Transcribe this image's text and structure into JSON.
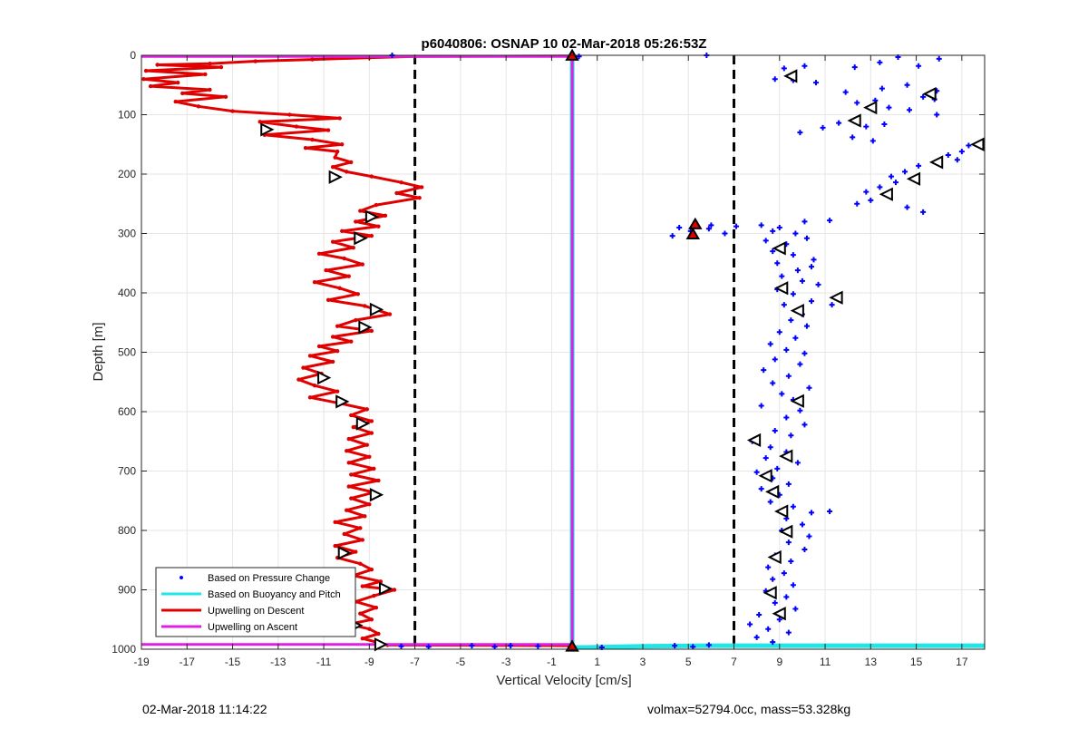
{
  "chart_data": {
    "type": "scatter",
    "title": "p6040806: OSNAP 10 02-Mar-2018 05:26:53Z",
    "xlabel": "Vertical Velocity [cm/s]",
    "ylabel": "Depth [m]",
    "xlim": [
      -19,
      18
    ],
    "ylim": [
      0,
      1000
    ],
    "y_reversed": true,
    "xticks": [
      -19,
      -17,
      -15,
      -13,
      -11,
      -9,
      -7,
      -5,
      -3,
      -1,
      1,
      3,
      5,
      7,
      9,
      11,
      13,
      15,
      17
    ],
    "yticks": [
      0,
      100,
      200,
      300,
      400,
      500,
      600,
      700,
      800,
      900,
      1000
    ],
    "grid": true,
    "legend_position": "bottom-left",
    "colors": {
      "pressure": "#0000ff",
      "buoyancy": "#22e5e5",
      "descent": "#e00000",
      "ascent": "#e020e0",
      "threshold": "#000000"
    },
    "series": [
      {
        "name": "Based on Pressure Change",
        "style": "points",
        "color": "#0000ff",
        "points": [
          [
            -8,
            0
          ],
          [
            5.8,
            0
          ],
          [
            0.2,
            2
          ],
          [
            9.2,
            22
          ],
          [
            10.1,
            18
          ],
          [
            12.3,
            20
          ],
          [
            13.4,
            12
          ],
          [
            14.2,
            3
          ],
          [
            15.1,
            18
          ],
          [
            16.0,
            6
          ],
          [
            8.8,
            40
          ],
          [
            9.6,
            42
          ],
          [
            10.6,
            46
          ],
          [
            13.5,
            56
          ],
          [
            14.6,
            50
          ],
          [
            15.9,
            60
          ],
          [
            11.9,
            62
          ],
          [
            12.4,
            80
          ],
          [
            13.2,
            76
          ],
          [
            15.3,
            70
          ],
          [
            15.8,
            74
          ],
          [
            14.7,
            92
          ],
          [
            13.8,
            88
          ],
          [
            15.9,
            100
          ],
          [
            11.6,
            114
          ],
          [
            12.8,
            120
          ],
          [
            13.6,
            116
          ],
          [
            10.9,
            122
          ],
          [
            12.2,
            138
          ],
          [
            13.1,
            144
          ],
          [
            9.9,
            130
          ],
          [
            17.3,
            152
          ],
          [
            17.0,
            162
          ],
          [
            16.4,
            168
          ],
          [
            16.8,
            176
          ],
          [
            15.1,
            186
          ],
          [
            14.5,
            196
          ],
          [
            13.9,
            204
          ],
          [
            14.1,
            214
          ],
          [
            13.4,
            222
          ],
          [
            12.8,
            230
          ],
          [
            13.0,
            244
          ],
          [
            12.4,
            250
          ],
          [
            14.6,
            256
          ],
          [
            15.3,
            264
          ],
          [
            4.6,
            290
          ],
          [
            5.1,
            296
          ],
          [
            4.3,
            304
          ],
          [
            6.0,
            286
          ],
          [
            7.1,
            288
          ],
          [
            6.6,
            300
          ],
          [
            5.9,
            292
          ],
          [
            8.2,
            286
          ],
          [
            9.0,
            290
          ],
          [
            10.1,
            280
          ],
          [
            11.2,
            278
          ],
          [
            8.7,
            296
          ],
          [
            9.7,
            300
          ],
          [
            8.4,
            312
          ],
          [
            9.3,
            318
          ],
          [
            10.2,
            308
          ],
          [
            8.7,
            330
          ],
          [
            9.6,
            336
          ],
          [
            10.5,
            344
          ],
          [
            8.9,
            350
          ],
          [
            9.8,
            362
          ],
          [
            10.4,
            356
          ],
          [
            9.1,
            372
          ],
          [
            10.0,
            380
          ],
          [
            10.7,
            386
          ],
          [
            8.9,
            394
          ],
          [
            9.6,
            402
          ],
          [
            10.4,
            414
          ],
          [
            11.3,
            420
          ],
          [
            9.2,
            420
          ],
          [
            10.0,
            436
          ],
          [
            9.5,
            446
          ],
          [
            10.2,
            456
          ],
          [
            9.0,
            466
          ],
          [
            9.7,
            476
          ],
          [
            8.6,
            486
          ],
          [
            9.3,
            496
          ],
          [
            10.1,
            502
          ],
          [
            8.8,
            512
          ],
          [
            9.9,
            520
          ],
          [
            8.3,
            530
          ],
          [
            9.4,
            540
          ],
          [
            8.7,
            552
          ],
          [
            10.3,
            560
          ],
          [
            9.1,
            570
          ],
          [
            9.6,
            580
          ],
          [
            8.2,
            590
          ],
          [
            9.9,
            598
          ],
          [
            9.3,
            610
          ],
          [
            10.1,
            622
          ],
          [
            8.8,
            632
          ],
          [
            9.5,
            640
          ],
          [
            7.8,
            650
          ],
          [
            8.6,
            660
          ],
          [
            9.3,
            668
          ],
          [
            8.4,
            678
          ],
          [
            9.8,
            686
          ],
          [
            8.9,
            696
          ],
          [
            8.0,
            702
          ],
          [
            8.7,
            712
          ],
          [
            9.4,
            722
          ],
          [
            8.2,
            730
          ],
          [
            9.0,
            740
          ],
          [
            8.6,
            752
          ],
          [
            9.6,
            760
          ],
          [
            10.4,
            770
          ],
          [
            11.2,
            768
          ],
          [
            9.3,
            780
          ],
          [
            10.0,
            790
          ],
          [
            9.1,
            800
          ],
          [
            10.3,
            810
          ],
          [
            9.4,
            820
          ],
          [
            10.1,
            832
          ],
          [
            8.8,
            842
          ],
          [
            9.5,
            852
          ],
          [
            8.5,
            862
          ],
          [
            9.2,
            872
          ],
          [
            8.7,
            882
          ],
          [
            9.6,
            892
          ],
          [
            8.4,
            902
          ],
          [
            9.3,
            912
          ],
          [
            8.8,
            922
          ],
          [
            9.7,
            932
          ],
          [
            8.1,
            942
          ],
          [
            9.0,
            950
          ],
          [
            7.7,
            958
          ],
          [
            8.5,
            966
          ],
          [
            9.4,
            972
          ],
          [
            8.0,
            980
          ],
          [
            8.7,
            988
          ],
          [
            4.4,
            994
          ],
          [
            5.2,
            996
          ],
          [
            5.9,
            993
          ],
          [
            -3.5,
            996
          ],
          [
            -2.8,
            994
          ],
          [
            -1.6,
            995
          ],
          [
            1.2,
            997
          ],
          [
            -4.5,
            994
          ],
          [
            -7.6,
            995
          ],
          [
            -6.4,
            996
          ]
        ]
      },
      {
        "name": "Based on Buoyancy and Pitch",
        "style": "line",
        "color": "#22e5e5",
        "points": [
          [
            -0.1,
            0
          ],
          [
            -0.1,
            997
          ],
          [
            0.5,
            997
          ],
          [
            3,
            995
          ],
          [
            6,
            994
          ],
          [
            18,
            994
          ]
        ]
      },
      {
        "name": "Upwelling on Descent",
        "style": "line",
        "color": "#e00000",
        "points": [
          [
            -0.1,
            1
          ],
          [
            -7,
            2
          ],
          [
            -9,
            4
          ],
          [
            -11.5,
            7
          ],
          [
            -14,
            10
          ],
          [
            -16,
            14
          ],
          [
            -18.3,
            16
          ],
          [
            -15.5,
            20
          ],
          [
            -18.8,
            26
          ],
          [
            -16.2,
            32
          ],
          [
            -18.9,
            40
          ],
          [
            -17.4,
            46
          ],
          [
            -18.6,
            52
          ],
          [
            -16.0,
            58
          ],
          [
            -17.2,
            64
          ],
          [
            -15.3,
            70
          ],
          [
            -17.5,
            78
          ],
          [
            -16.5,
            86
          ],
          [
            -15.0,
            94
          ],
          [
            -12.5,
            100
          ],
          [
            -10.3,
            106
          ],
          [
            -13.8,
            112
          ],
          [
            -12.2,
            120
          ],
          [
            -10.8,
            126
          ],
          [
            -13.6,
            134
          ],
          [
            -11.5,
            142
          ],
          [
            -10.2,
            150
          ],
          [
            -11.8,
            156
          ],
          [
            -10.4,
            162
          ],
          [
            -10.5,
            172
          ],
          [
            -9.8,
            180
          ],
          [
            -10.6,
            188
          ],
          [
            -10.0,
            196
          ],
          [
            -8.9,
            204
          ],
          [
            -7.6,
            214
          ],
          [
            -6.7,
            222
          ],
          [
            -7.8,
            232
          ],
          [
            -6.8,
            240
          ],
          [
            -8.7,
            252
          ],
          [
            -9.4,
            262
          ],
          [
            -8.3,
            270
          ],
          [
            -9.6,
            280
          ],
          [
            -8.6,
            288
          ],
          [
            -10.2,
            296
          ],
          [
            -8.9,
            304
          ],
          [
            -10.6,
            314
          ],
          [
            -9.7,
            324
          ],
          [
            -11.2,
            334
          ],
          [
            -10.1,
            342
          ],
          [
            -9.3,
            352
          ],
          [
            -10.9,
            362
          ],
          [
            -9.9,
            372
          ],
          [
            -11.4,
            382
          ],
          [
            -10.3,
            392
          ],
          [
            -9.5,
            402
          ],
          [
            -10.8,
            412
          ],
          [
            -9.2,
            422
          ],
          [
            -8.1,
            436
          ],
          [
            -9.6,
            446
          ],
          [
            -10.4,
            456
          ],
          [
            -8.9,
            464
          ],
          [
            -10.6,
            474
          ],
          [
            -9.8,
            482
          ],
          [
            -11.2,
            490
          ],
          [
            -10.4,
            498
          ],
          [
            -11.6,
            506
          ],
          [
            -10.6,
            516
          ],
          [
            -11.9,
            526
          ],
          [
            -11.1,
            536
          ],
          [
            -12.1,
            546
          ],
          [
            -11.4,
            556
          ],
          [
            -10.4,
            566
          ],
          [
            -11.6,
            576
          ],
          [
            -10.3,
            586
          ],
          [
            -9.1,
            596
          ],
          [
            -9.8,
            606
          ],
          [
            -8.9,
            616
          ],
          [
            -9.7,
            626
          ],
          [
            -8.9,
            636
          ],
          [
            -9.9,
            646
          ],
          [
            -9.1,
            656
          ],
          [
            -10.0,
            666
          ],
          [
            -9.0,
            676
          ],
          [
            -9.9,
            686
          ],
          [
            -8.8,
            696
          ],
          [
            -9.8,
            706
          ],
          [
            -8.6,
            716
          ],
          [
            -9.9,
            726
          ],
          [
            -8.8,
            736
          ],
          [
            -9.8,
            746
          ],
          [
            -9.0,
            756
          ],
          [
            -10.0,
            766
          ],
          [
            -9.2,
            776
          ],
          [
            -10.5,
            786
          ],
          [
            -9.4,
            796
          ],
          [
            -10.1,
            806
          ],
          [
            -9.3,
            816
          ],
          [
            -10.5,
            826
          ],
          [
            -9.6,
            836
          ],
          [
            -10.4,
            846
          ],
          [
            -9.4,
            856
          ],
          [
            -8.9,
            866
          ],
          [
            -9.7,
            876
          ],
          [
            -8.5,
            886
          ],
          [
            -9.3,
            894
          ],
          [
            -7.9,
            900
          ],
          [
            -8.8,
            910
          ],
          [
            -9.6,
            920
          ],
          [
            -8.7,
            930
          ],
          [
            -9.4,
            940
          ],
          [
            -8.9,
            950
          ],
          [
            -9.9,
            958
          ],
          [
            -9.0,
            966
          ],
          [
            -8.6,
            974
          ],
          [
            -9.3,
            982
          ],
          [
            -8.7,
            988
          ],
          [
            -8.2,
            993
          ],
          [
            -0.1,
            994
          ]
        ]
      },
      {
        "name": "Upwelling on Ascent",
        "style": "line",
        "color": "#e020e0",
        "points": [
          [
            -19,
            2
          ],
          [
            -0.1,
            2
          ],
          [
            -0.1,
            992
          ],
          [
            -19,
            992
          ]
        ]
      }
    ],
    "threshold_lines": [
      -7,
      7
    ],
    "descent_markers": [
      [
        -13.5,
        125
      ],
      [
        -10.5,
        205
      ],
      [
        -8.9,
        272
      ],
      [
        -9.4,
        308
      ],
      [
        -8.7,
        428
      ],
      [
        -9.2,
        458
      ],
      [
        -11.0,
        543
      ],
      [
        -10.2,
        583
      ],
      [
        -9.3,
        620
      ],
      [
        -8.7,
        740
      ],
      [
        -10.1,
        838
      ],
      [
        -8.3,
        898
      ],
      [
        -9.6,
        960
      ],
      [
        -8.5,
        992
      ]
    ],
    "ascent_markers": [
      [
        9.5,
        35
      ],
      [
        15.6,
        65
      ],
      [
        13.0,
        88
      ],
      [
        12.3,
        110
      ],
      [
        17.7,
        150
      ],
      [
        15.9,
        180
      ],
      [
        14.9,
        208
      ],
      [
        13.7,
        234
      ],
      [
        9.0,
        325
      ],
      [
        9.1,
        392
      ],
      [
        11.5,
        408
      ],
      [
        9.8,
        430
      ],
      [
        9.8,
        582
      ],
      [
        7.9,
        648
      ],
      [
        9.3,
        675
      ],
      [
        8.4,
        708
      ],
      [
        8.7,
        735
      ],
      [
        9.1,
        768
      ],
      [
        9.3,
        802
      ],
      [
        8.8,
        845
      ],
      [
        8.6,
        905
      ],
      [
        9.0,
        940
      ]
    ],
    "special_markers": [
      [
        5.3,
        285
      ],
      [
        5.2,
        302
      ],
      [
        -0.1,
        1
      ],
      [
        -0.1,
        996
      ]
    ]
  },
  "footer": {
    "timestamp": "02-Mar-2018 11:14:22",
    "info": "volmax=52794.0cc, mass=53.328kg"
  }
}
